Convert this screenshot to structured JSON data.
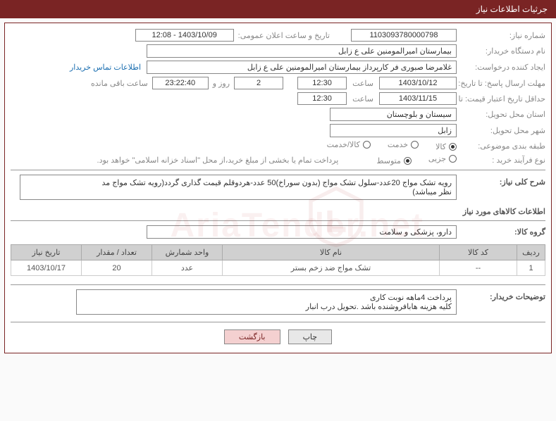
{
  "header": {
    "title": "جرثیات اطلاعات نیاز"
  },
  "fields": {
    "need_number": {
      "label": "شماره نیاز:",
      "value": "1103093780000798"
    },
    "announce_datetime": {
      "label": "تاریخ و ساعت اعلان عمومی:",
      "value": "1403/10/09 - 12:08"
    },
    "buyer_org": {
      "label": "نام دستگاه خریدار:",
      "value": "بیمارستان امیرالمومنین علی  ع  زابل"
    },
    "requester": {
      "label": "ایجاد کننده درخواست:",
      "value": "غلامرضا صبوری فر کارپرداز بیمارستان امیرالمومنین علی  ع  زابل"
    },
    "contact_link": "اطلاعات تماس خریدار",
    "deadline_send": {
      "label": "مهلت ارسال پاسخ: تا تاریخ:",
      "date": "1403/10/12",
      "time_label": "ساعت",
      "time": "12:30",
      "remain_days": "2",
      "remain_days_suffix": "روز و",
      "remain_time": "23:22:40",
      "remain_suffix": "ساعت باقی مانده"
    },
    "price_validity": {
      "label": "حداقل تاریخ اعتبار قیمت: تا تاریخ:",
      "date": "1403/11/15",
      "time_label": "ساعت",
      "time": "12:30"
    },
    "delivery_province": {
      "label": "استان محل تحویل:",
      "value": "سیستان و بلوچستان"
    },
    "delivery_city": {
      "label": "شهر محل تحویل:",
      "value": "زابل"
    },
    "category": {
      "label": "طبقه بندی موضوعی:",
      "options": [
        "کالا",
        "خدمت",
        "کالا/خدمت"
      ],
      "selected": 0
    },
    "process_type": {
      "label": "نوع فرآیند خرید :",
      "options": [
        "جزیی",
        "متوسط"
      ],
      "selected": 1,
      "note": "پرداخت تمام یا بخشی از مبلغ خرید،از محل \"اسناد خزانه اسلامی\" خواهد بود."
    },
    "need_desc": {
      "label": "شرح کلی نیاز:",
      "value": "رویه تشک مواج 20عدد-سلول تشک مواج (بدون سوراخ)50 عدد-هردوقلم قیمت گذاری گردد(رویه تشک مواج مد\nنظر میباشد)"
    },
    "goods_section_title": "اطلاعات کالاهای مورد نیاز",
    "goods_group": {
      "label": "گروه کالا:",
      "value": "دارو، پزشکی و سلامت"
    },
    "table": {
      "headers": [
        "ردیف",
        "کد کالا",
        "نام کالا",
        "واحد شمارش",
        "تعداد / مقدار",
        "تاریخ نیاز"
      ],
      "rows": [
        [
          "1",
          "--",
          "تشک مواج ضد زخم بستر",
          "عدد",
          "20",
          "1403/10/17"
        ]
      ]
    },
    "buyer_note": {
      "label": "توضیحات خریدار:",
      "value": "پرداخت 4ماهه نوبت کاری\nکلیه هزینه هابافروشنده باشد .تحویل درب انبار"
    }
  },
  "buttons": {
    "print": "چاپ",
    "back": "بازگشت"
  },
  "watermark": "AriaTender.net"
}
